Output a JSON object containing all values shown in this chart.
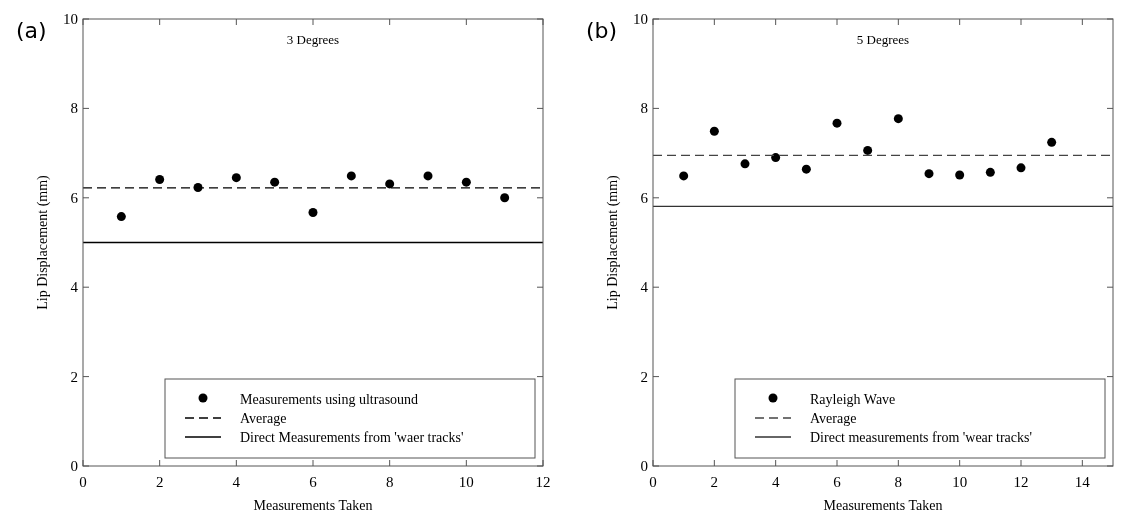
{
  "chart_data": [
    {
      "type": "scatter",
      "title": "3 Degrees",
      "annotations": [
        "(a)"
      ],
      "xlabel": "Measurements Taken",
      "ylabel": "Lip Displacement (mm)",
      "xlim": [
        0,
        12
      ],
      "xticks": [
        0,
        2,
        4,
        6,
        8,
        10,
        12
      ],
      "ylim": [
        0,
        10
      ],
      "yticks": [
        0,
        2,
        4,
        6,
        8,
        10
      ],
      "legend": "bottom right",
      "grid": false,
      "series": [
        {
          "name": "Measurements using ultrasound",
          "marker": "circle",
          "color": "#000000",
          "x": [
            1,
            2,
            3,
            4,
            5,
            6,
            7,
            8,
            9,
            10,
            11
          ],
          "values": [
            5.58,
            6.41,
            6.23,
            6.45,
            6.35,
            5.67,
            6.49,
            6.31,
            6.49,
            6.35,
            6.0
          ]
        },
        {
          "name": "Average",
          "type": "line",
          "line_style": "dashed",
          "color": "#000000",
          "x": [
            0,
            12
          ],
          "values": [
            6.22,
            6.22
          ]
        },
        {
          "name": "Direct Measurements from 'waer tracks'",
          "type": "line",
          "line_style": "solid",
          "color": "#000000",
          "x": [
            0,
            12
          ],
          "values": [
            5.0,
            5.0
          ]
        }
      ]
    },
    {
      "type": "scatter",
      "title": "5 Degrees",
      "annotations": [
        "(b)"
      ],
      "xlabel": "Measurements Taken",
      "ylabel": "Lip Displacement (mm)",
      "xlim": [
        0,
        15
      ],
      "xticks": [
        0,
        2,
        4,
        6,
        8,
        10,
        12,
        14
      ],
      "ylim": [
        0,
        10
      ],
      "yticks": [
        0,
        2,
        4,
        6,
        8,
        10
      ],
      "legend": "bottom right",
      "grid": false,
      "series": [
        {
          "name": "Rayleigh Wave",
          "marker": "circle",
          "color": "#000000",
          "x": [
            1,
            2,
            3,
            4,
            5,
            6,
            7,
            8,
            9,
            10,
            11,
            12,
            13
          ],
          "values": [
            6.49,
            7.49,
            6.76,
            6.9,
            6.64,
            7.67,
            7.06,
            7.77,
            6.54,
            6.51,
            6.57,
            6.67,
            7.24
          ]
        },
        {
          "name": "Average",
          "type": "line",
          "line_style": "dashed",
          "color": "#444444",
          "x": [
            0,
            15
          ],
          "values": [
            6.95,
            6.95
          ]
        },
        {
          "name": "Direct measurements from 'wear tracks'",
          "type": "line",
          "line_style": "solid",
          "color": "#333333",
          "x": [
            0,
            15
          ],
          "values": [
            5.81,
            5.81
          ]
        }
      ]
    }
  ]
}
